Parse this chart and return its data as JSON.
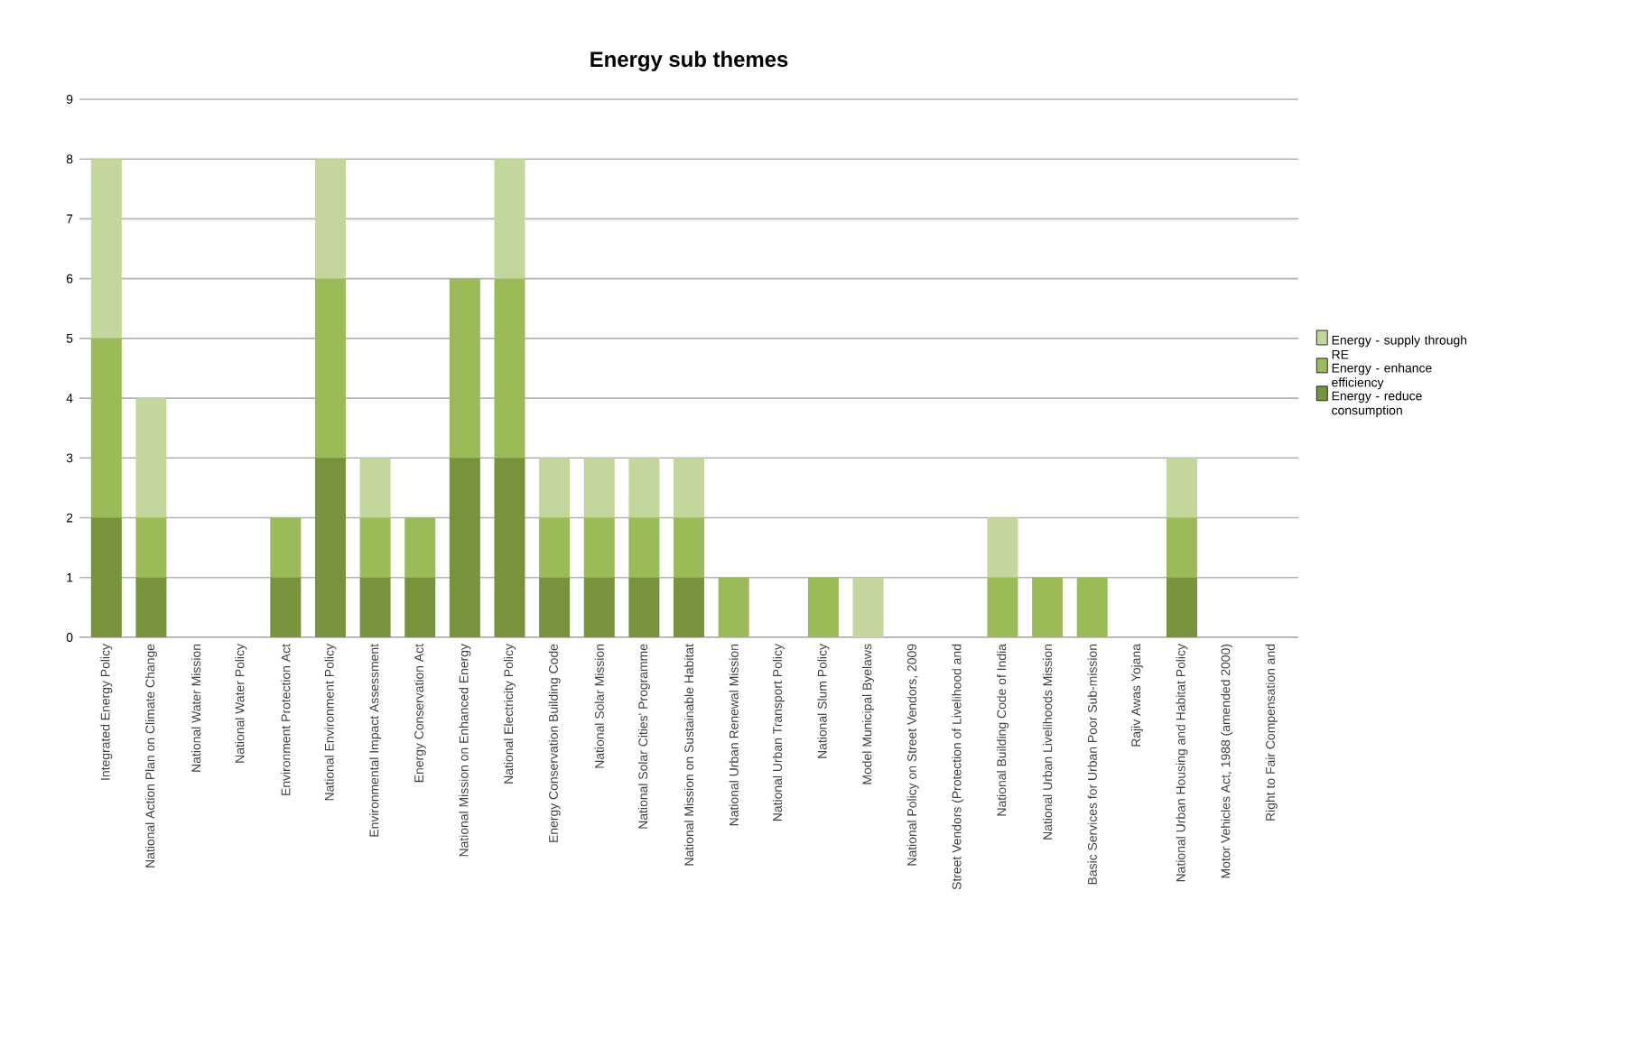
{
  "chart_data": {
    "type": "bar",
    "stacked": true,
    "title": "Energy sub themes",
    "categories": [
      "Integrated Energy Policy",
      "National Action Plan on Climate Change",
      "National Water Mission",
      "National Water Policy",
      "Environment Protection Act",
      "National Environment Policy",
      "Environmental Impact Assessment",
      "Energy Conservation Act",
      "National Mission on Enhanced Energy",
      "National Electricity Policy",
      "Energy Conservation Building Code",
      "National Solar Mission",
      "National Solar Cities' Programme",
      "National Mission on Sustainable Habitat",
      "National Urban Renewal Mission",
      "National Urban Transport Policy",
      "National Slum Policy",
      "Model Municipal Byelaws",
      "National Policy on Street Vendors, 2009",
      "Street Vendors (Protection of Livelihood and",
      "National Building Code of India",
      "National Urban Livelihoods Mission",
      "Basic Services for Urban Poor Sub-mission",
      "Rajiv Awas Yojana",
      "National Urban Housing and Habitat Policy",
      "Motor Vehicles Act, 1988 (amended 2000)",
      "Right to Fair Compensation and"
    ],
    "series": [
      {
        "name": "Energy - reduce consumption",
        "color": "#77933c",
        "values": [
          2,
          1,
          0,
          0,
          1,
          3,
          1,
          1,
          3,
          3,
          1,
          1,
          1,
          1,
          0,
          0,
          0,
          0,
          0,
          0,
          0,
          0,
          0,
          0,
          1,
          0,
          0
        ]
      },
      {
        "name": "Energy - enhance efficiency",
        "color": "#9bbb59",
        "values": [
          3,
          1,
          0,
          0,
          1,
          3,
          1,
          1,
          3,
          3,
          1,
          1,
          1,
          1,
          1,
          0,
          1,
          0,
          0,
          0,
          1,
          1,
          1,
          0,
          1,
          0,
          0
        ]
      },
      {
        "name": "Energy - supply through RE",
        "color": "#c3d69b",
        "values": [
          3,
          2,
          0,
          0,
          0,
          2,
          1,
          0,
          0,
          2,
          1,
          1,
          1,
          1,
          0,
          0,
          0,
          1,
          0,
          0,
          1,
          0,
          0,
          0,
          1,
          0,
          0
        ]
      }
    ],
    "ylim": [
      0,
      9
    ],
    "yticks": [
      0,
      1,
      2,
      3,
      4,
      5,
      6,
      7,
      8,
      9
    ],
    "grid": "y",
    "legend": "right"
  }
}
